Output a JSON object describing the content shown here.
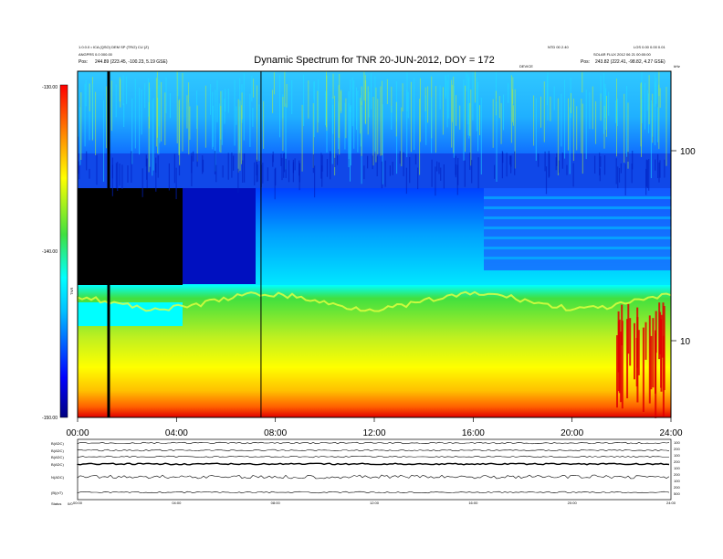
{
  "title": "Dynamic Spectrum for TNR 20-JUN-2012, DOY = 172",
  "header": {
    "left_lines": [
      "1.0.0.0 • ICA (QSO) DEM SP (TR/2) CU (Z)",
      "ANGPRS 0.0 000.00"
    ],
    "left_pos_label": "Pos:",
    "left_pos_value": "244.89 (223.45, -100.23, 5.19 GSE)",
    "right_top_1": "NTD 00 2.40",
    "right_top_2": "LOS 0.00 0.00 0.01",
    "right_line_2": "SOLAR FLUX 2012 06 21 00:00:00",
    "right_pos_label": "Pos:",
    "right_pos_value": "243.82 (222.41, -98.82, 4.27 GSE)",
    "right_corner": "kHz",
    "center_small": "DEVICE"
  },
  "colorbar": {
    "label": "TNR",
    "ticks": [
      "-130.00",
      "-140.00",
      "-150.00"
    ]
  },
  "chart_data": [
    {
      "type": "heatmap",
      "name": "dynamic-spectrum",
      "x_ticks": [
        "00:00",
        "04:00",
        "08:00",
        "12:00",
        "16:00",
        "20:00",
        "24:00"
      ],
      "xlim_hours": [
        0,
        24
      ],
      "y_right_ticks": [
        "100",
        "10"
      ],
      "y_scale": "log",
      "colorbar_range_db": [
        -150,
        -130
      ],
      "colorbar_ticks_db": [
        -130,
        -140,
        -150
      ],
      "bands": [
        {
          "name": "upper-noise-band",
          "intensity": "medium-high"
        },
        {
          "name": "dark-gap-band",
          "intensity": "very-low"
        },
        {
          "name": "middle-cyan-band",
          "intensity": "low-medium"
        },
        {
          "name": "lower-green-yellow-band",
          "intensity": "high"
        }
      ]
    },
    {
      "type": "line",
      "name": "bottom-panel",
      "left_labels": [
        "B(ADC)",
        "B(ADC)",
        "B(ADC)",
        "B(ADC)",
        "N(ADC)",
        "(B)(nT)"
      ],
      "right_labels": [
        "100",
        "200",
        "100",
        "200",
        "100",
        "200",
        "100",
        "200",
        "500"
      ],
      "x_ticks": [
        "00:00",
        "04:00",
        "08:00",
        "12:00",
        "16:00",
        "20:00",
        "24:00"
      ],
      "status_label": "Status",
      "status_value": "0/0"
    }
  ],
  "colors": {
    "red": "#e00000",
    "yellow": "#ffff00",
    "green": "#38e030",
    "cyan": "#00ffff",
    "blue": "#0050ff",
    "darkblue": "#0000b0",
    "black": "#000000"
  }
}
